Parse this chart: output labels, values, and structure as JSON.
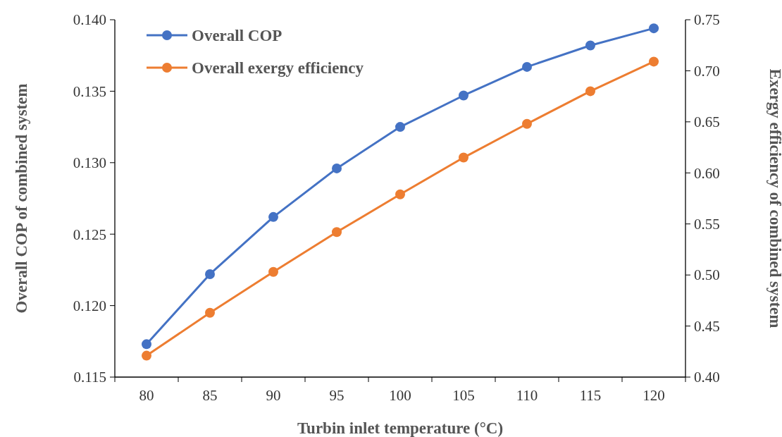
{
  "chart_data": {
    "type": "line",
    "xlabel": "Turbin inlet temperature (°C)",
    "ylabel": "Overall COP of combined system",
    "y2label": "Exergy efficiency of combined system",
    "categories": [
      "80",
      "85",
      "90",
      "95",
      "100",
      "105",
      "110",
      "115",
      "120"
    ],
    "series": [
      {
        "name": "Overall COP",
        "color": "#4472c4",
        "values": [
          0.1173,
          0.1222,
          0.1262,
          0.1296,
          0.1325,
          0.1347,
          0.1367,
          0.1382,
          0.1394
        ]
      },
      {
        "name": "Overall exergy efficiency",
        "color": "#ed7d31",
        "axis": "y2",
        "values": [
          0.421,
          0.463,
          0.503,
          0.542,
          0.579,
          0.615,
          0.648,
          0.68,
          0.709
        ]
      }
    ],
    "ylim": [
      0.115,
      0.14
    ],
    "yticks": [
      {
        "value": 0.115,
        "label": "0.115"
      },
      {
        "value": 0.12,
        "label": "0.120"
      },
      {
        "value": 0.125,
        "label": "0.125"
      },
      {
        "value": 0.13,
        "label": "0.130"
      },
      {
        "value": 0.135,
        "label": "0.135"
      },
      {
        "value": 0.14,
        "label": "0.140"
      }
    ],
    "y2lim": [
      0.4,
      0.75
    ],
    "y2ticks": [
      {
        "value": 0.4,
        "label": "0.40"
      },
      {
        "value": 0.45,
        "label": "0.45"
      },
      {
        "value": 0.5,
        "label": "0.50"
      },
      {
        "value": 0.55,
        "label": "0.55"
      },
      {
        "value": 0.6,
        "label": "0.60"
      },
      {
        "value": 0.65,
        "label": "0.65"
      },
      {
        "value": 0.7,
        "label": "0.70"
      },
      {
        "value": 0.75,
        "label": "0.75"
      }
    ],
    "legend": "top left",
    "marker": "circle",
    "line_style": "solid",
    "grid": false
  }
}
